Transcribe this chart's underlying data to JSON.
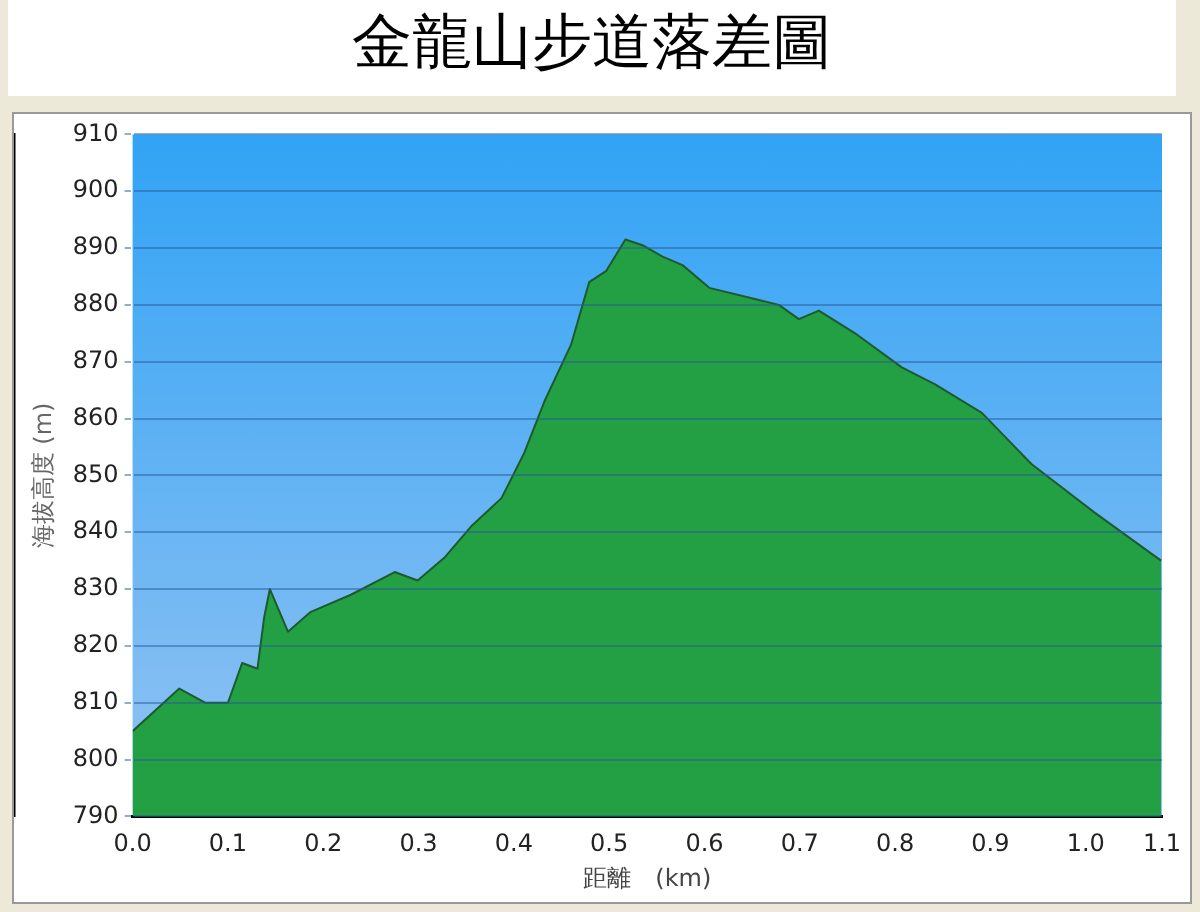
{
  "chart_data": {
    "type": "area",
    "title": "金龍山步道落差圖",
    "xlabel": "距離　(km)",
    "ylabel": "海拔高度 (m)",
    "x": [
      0,
      0.049,
      0.076,
      0.1,
      0.115,
      0.131,
      0.138,
      0.144,
      0.163,
      0.187,
      0.229,
      0.275,
      0.299,
      0.327,
      0.355,
      0.387,
      0.411,
      0.432,
      0.46,
      0.479,
      0.497,
      0.517,
      0.535,
      0.556,
      0.577,
      0.605,
      0.654,
      0.678,
      0.699,
      0.72,
      0.758,
      0.807,
      0.842,
      0.891,
      0.943,
      1.009,
      1.079
    ],
    "series": [
      {
        "color": "#23a043",
        "values": [
          805,
          812.5,
          810,
          810,
          817,
          816,
          825,
          830,
          822.5,
          826,
          829,
          833,
          831.5,
          835.5,
          841,
          846,
          854,
          863,
          873,
          884,
          886,
          891.5,
          890.5,
          888.5,
          887,
          883,
          881,
          880,
          877.5,
          879,
          875,
          869,
          866,
          861,
          852,
          843.5,
          835
        ]
      }
    ],
    "xlim": [
      0,
      1.08
    ],
    "xticks": [
      {
        "value": 0,
        "label": "0.0"
      },
      0.1,
      0.2,
      0.3,
      0.4,
      0.5,
      0.6,
      0.7,
      0.8,
      0.9,
      {
        "value": 1,
        "label": "1.0"
      },
      {
        "value": 1.08,
        "label": "1.1"
      }
    ],
    "ylim": [
      790,
      910
    ],
    "yticks": [
      790,
      800,
      810,
      820,
      830,
      840,
      850,
      860,
      870,
      880,
      890,
      900,
      910
    ],
    "grid": "y",
    "legend": false,
    "marker": "none"
  }
}
